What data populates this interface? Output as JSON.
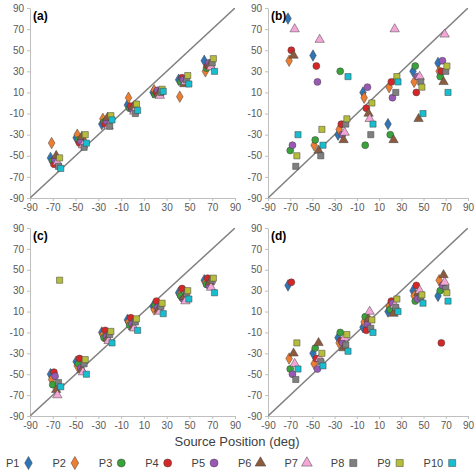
{
  "x_label": "Source Position (deg)",
  "chart_data": [
    {
      "type": "scatter",
      "title": "(a)",
      "xlim": [
        -90,
        90
      ],
      "ylim": [
        -90,
        90
      ],
      "xticks": [
        -90,
        -70,
        -50,
        -30,
        -10,
        10,
        30,
        50,
        70,
        90
      ],
      "yticks": [
        -90,
        -70,
        -50,
        -30,
        -10,
        10,
        30,
        50,
        70,
        90
      ],
      "series": [
        {
          "name": "P1",
          "color": "#2e75b6",
          "marker": "diamond",
          "x": [
            -72,
            -49.5,
            -27,
            -4.5,
            18,
            40.5,
            63
          ],
          "values": [
            -52,
            -33,
            -20,
            -2,
            10,
            22,
            40
          ]
        },
        {
          "name": "P2",
          "color": "#ed7d31",
          "marker": "diamond",
          "x": [
            -71,
            -48.5,
            -26,
            -3.5,
            19,
            41.5,
            64
          ],
          "values": [
            -38,
            -30,
            -15,
            5,
            12,
            6,
            30
          ]
        },
        {
          "name": "P3",
          "color": "#3aa23a",
          "marker": "circle",
          "x": [
            -70,
            -47.5,
            -25,
            -2.5,
            20,
            42.5,
            65
          ],
          "values": [
            -55,
            -35,
            -18,
            -5,
            8,
            20,
            33
          ]
        },
        {
          "name": "P4",
          "color": "#d62728",
          "marker": "circle",
          "x": [
            -69,
            -46.5,
            -24,
            -1.5,
            21,
            43.5,
            66
          ],
          "values": [
            -58,
            -38,
            -20,
            -3,
            10,
            24,
            35
          ]
        },
        {
          "name": "P5",
          "color": "#9b59b6",
          "marker": "circle",
          "x": [
            -68,
            -45.5,
            -23,
            -0.5,
            22,
            44.5,
            67
          ],
          "values": [
            -54,
            -36,
            -17,
            -6,
            12,
            22,
            38
          ]
        },
        {
          "name": "P6",
          "color": "#8c5a3c",
          "marker": "triangle",
          "x": [
            -67,
            -44.5,
            -22,
            0.5,
            23,
            45.5,
            68
          ],
          "values": [
            -50,
            -32,
            -14,
            -4,
            9,
            18,
            36
          ]
        },
        {
          "name": "P7",
          "color": "#f4a6d7",
          "marker": "triangle",
          "x": [
            -66,
            -43.5,
            -21,
            1.5,
            24,
            46.5,
            69
          ],
          "values": [
            -56,
            -40,
            -22,
            -8,
            7,
            20,
            34
          ]
        },
        {
          "name": "P8",
          "color": "#7f7f7f",
          "marker": "square",
          "x": [
            -65,
            -42.5,
            -20,
            2.5,
            25,
            47.5,
            70
          ],
          "values": [
            -60,
            -42,
            -22,
            -10,
            10,
            22,
            38
          ]
        },
        {
          "name": "P9",
          "color": "#b5bd3a",
          "marker": "square",
          "x": [
            -64,
            -41.5,
            -19,
            3.5,
            26,
            48.5,
            71
          ],
          "values": [
            -52,
            -30,
            -12,
            -1,
            13,
            26,
            42
          ]
        },
        {
          "name": "P10",
          "color": "#17becf",
          "marker": "square",
          "x": [
            -63,
            -40.5,
            -18,
            4.5,
            27,
            49.5,
            72
          ],
          "values": [
            -62,
            -38,
            -16,
            -7,
            11,
            18,
            30
          ]
        }
      ]
    },
    {
      "type": "scatter",
      "title": "(b)",
      "xlim": [
        -90,
        90
      ],
      "ylim": [
        -90,
        90
      ],
      "xticks": [
        -90,
        -70,
        -50,
        -30,
        -10,
        10,
        30,
        50,
        70,
        90
      ],
      "yticks": [
        -90,
        -70,
        -50,
        -30,
        -10,
        10,
        30,
        50,
        70,
        90
      ],
      "series": [
        {
          "name": "P1",
          "color": "#2e75b6",
          "marker": "diamond",
          "x": [
            -72,
            -49.5,
            -27,
            -4.5,
            18,
            40.5,
            63
          ],
          "values": [
            80,
            45,
            -30,
            10,
            -20,
            30,
            38
          ]
        },
        {
          "name": "P2",
          "color": "#ed7d31",
          "marker": "diamond",
          "x": [
            -71,
            -48.5,
            -26,
            -3.5,
            19,
            41.5,
            64
          ],
          "values": [
            40,
            -40,
            -25,
            5,
            15,
            20,
            30
          ]
        },
        {
          "name": "P3",
          "color": "#3aa23a",
          "marker": "circle",
          "x": [
            -70,
            -47.5,
            -25,
            -2.5,
            20,
            42.5,
            65
          ],
          "values": [
            -45,
            -35,
            30,
            -40,
            -30,
            35,
            25
          ]
        },
        {
          "name": "P4",
          "color": "#d62728",
          "marker": "circle",
          "x": [
            -69,
            -46.5,
            -24,
            -1.5,
            21,
            43.5,
            66
          ],
          "values": [
            50,
            35,
            -20,
            -5,
            20,
            10,
            30
          ]
        },
        {
          "name": "P5",
          "color": "#9b59b6",
          "marker": "circle",
          "x": [
            -68,
            -45.5,
            -23,
            -0.5,
            22,
            44.5,
            67
          ],
          "values": [
            -40,
            20,
            -30,
            15,
            5,
            25,
            40
          ]
        },
        {
          "name": "P6",
          "color": "#8c5a3c",
          "marker": "triangle",
          "x": [
            -67,
            -44.5,
            -22,
            0.5,
            23,
            45.5,
            68
          ],
          "values": [
            45,
            -45,
            -35,
            -10,
            -35,
            -15,
            20
          ]
        },
        {
          "name": "P7",
          "color": "#f4a6d7",
          "marker": "triangle",
          "x": [
            -66,
            -43.5,
            -21,
            1.5,
            24,
            46.5,
            69
          ],
          "values": [
            70,
            60,
            -28,
            -15,
            70,
            25,
            65
          ]
        },
        {
          "name": "P8",
          "color": "#7f7f7f",
          "marker": "square",
          "x": [
            -65,
            -42.5,
            -20,
            2.5,
            25,
            47.5,
            70
          ],
          "values": [
            -60,
            -50,
            -20,
            -30,
            10,
            20,
            30
          ]
        },
        {
          "name": "P9",
          "color": "#b5bd3a",
          "marker": "square",
          "x": [
            -64,
            -41.5,
            -19,
            3.5,
            26,
            48.5,
            71
          ],
          "values": [
            -50,
            -25,
            -15,
            0,
            25,
            15,
            35
          ]
        },
        {
          "name": "P10",
          "color": "#17becf",
          "marker": "square",
          "x": [
            -63,
            -40.5,
            -18,
            4.5,
            27,
            49.5,
            72
          ],
          "values": [
            -30,
            -40,
            25,
            -20,
            20,
            -10,
            10
          ]
        }
      ]
    },
    {
      "type": "scatter",
      "title": "(c)",
      "xlim": [
        -90,
        90
      ],
      "ylim": [
        -90,
        90
      ],
      "xticks": [
        -90,
        -70,
        -50,
        -30,
        -10,
        10,
        30,
        50,
        70,
        90
      ],
      "yticks": [
        -90,
        -70,
        -50,
        -30,
        -10,
        10,
        30,
        50,
        70,
        90
      ],
      "series": [
        {
          "name": "P1",
          "color": "#2e75b6",
          "marker": "diamond",
          "x": [
            -72,
            -49.5,
            -27,
            -4.5,
            18,
            40.5,
            63
          ],
          "values": [
            -50,
            -38,
            -10,
            2,
            15,
            28,
            40
          ]
        },
        {
          "name": "P2",
          "color": "#ed7d31",
          "marker": "diamond",
          "x": [
            -71,
            -48.5,
            -26,
            -3.5,
            19,
            41.5,
            64
          ],
          "values": [
            -55,
            -42,
            -12,
            0,
            12,
            26,
            38
          ]
        },
        {
          "name": "P3",
          "color": "#3aa23a",
          "marker": "circle",
          "x": [
            -70,
            -47.5,
            -25,
            -2.5,
            20,
            42.5,
            65
          ],
          "values": [
            -60,
            -40,
            -15,
            -3,
            16,
            25,
            36
          ]
        },
        {
          "name": "P4",
          "color": "#d62728",
          "marker": "circle",
          "x": [
            -69,
            -46.5,
            -24,
            -1.5,
            21,
            43.5,
            66
          ],
          "values": [
            -48,
            -35,
            -8,
            4,
            20,
            32,
            42
          ]
        },
        {
          "name": "P5",
          "color": "#9b59b6",
          "marker": "circle",
          "x": [
            -68,
            -45.5,
            -23,
            -0.5,
            22,
            44.5,
            67
          ],
          "values": [
            -52,
            -44,
            -14,
            -2,
            14,
            22,
            35
          ]
        },
        {
          "name": "P6",
          "color": "#8c5a3c",
          "marker": "triangle",
          "x": [
            -67,
            -44.5,
            -22,
            0.5,
            23,
            45.5,
            68
          ],
          "values": [
            -65,
            -46,
            -16,
            -5,
            12,
            24,
            38
          ]
        },
        {
          "name": "P7",
          "color": "#f4a6d7",
          "marker": "triangle",
          "x": [
            -66,
            -43.5,
            -21,
            1.5,
            24,
            46.5,
            69
          ],
          "values": [
            -70,
            -48,
            -18,
            -6,
            10,
            20,
            33
          ]
        },
        {
          "name": "P8",
          "color": "#7f7f7f",
          "marker": "square",
          "x": [
            -65,
            -42.5,
            -20,
            2.5,
            25,
            47.5,
            70
          ],
          "values": [
            -58,
            -40,
            -12,
            0,
            15,
            27,
            40
          ]
        },
        {
          "name": "P9",
          "color": "#b5bd3a",
          "marker": "square",
          "x": [
            -64,
            -41.5,
            -19,
            3.5,
            26,
            48.5,
            71
          ],
          "values": [
            40,
            -36,
            -9,
            3,
            18,
            30,
            42
          ]
        },
        {
          "name": "P10",
          "color": "#17becf",
          "marker": "square",
          "x": [
            -63,
            -40.5,
            -18,
            4.5,
            27,
            49.5,
            72
          ],
          "values": [
            -62,
            -50,
            -20,
            -8,
            8,
            22,
            28
          ]
        }
      ]
    },
    {
      "type": "scatter",
      "title": "(d)",
      "xlim": [
        -90,
        90
      ],
      "ylim": [
        -90,
        90
      ],
      "xticks": [
        -90,
        -70,
        -50,
        -30,
        -10,
        10,
        30,
        50,
        70,
        90
      ],
      "yticks": [
        -90,
        -70,
        -50,
        -30,
        -10,
        10,
        30,
        50,
        70,
        90
      ],
      "series": [
        {
          "name": "P1",
          "color": "#2e75b6",
          "marker": "diamond",
          "x": [
            -72,
            -49.5,
            -27,
            -4.5,
            18,
            40.5,
            63
          ],
          "values": [
            35,
            -30,
            -15,
            -5,
            10,
            30,
            25
          ]
        },
        {
          "name": "P2",
          "color": "#ed7d31",
          "marker": "diamond",
          "x": [
            -71,
            -48.5,
            -26,
            -3.5,
            19,
            41.5,
            64
          ],
          "values": [
            -35,
            -40,
            -20,
            0,
            15,
            25,
            40
          ]
        },
        {
          "name": "P3",
          "color": "#3aa23a",
          "marker": "circle",
          "x": [
            -70,
            -47.5,
            -25,
            -2.5,
            20,
            42.5,
            65
          ],
          "values": [
            -45,
            -25,
            -10,
            5,
            12,
            20,
            30
          ]
        },
        {
          "name": "P4",
          "color": "#d62728",
          "marker": "circle",
          "x": [
            -69,
            -46.5,
            -24,
            -1.5,
            21,
            43.5,
            66
          ],
          "values": [
            38,
            -35,
            -18,
            -8,
            20,
            35,
            -20
          ]
        },
        {
          "name": "P5",
          "color": "#9b59b6",
          "marker": "circle",
          "x": [
            -68,
            -45.5,
            -23,
            -0.5,
            22,
            44.5,
            67
          ],
          "values": [
            -50,
            -45,
            -20,
            -2,
            18,
            22,
            35
          ]
        },
        {
          "name": "P6",
          "color": "#8c5a3c",
          "marker": "triangle",
          "x": [
            -67,
            -44.5,
            -22,
            0.5,
            23,
            45.5,
            68
          ],
          "values": [
            -30,
            -20,
            -25,
            3,
            8,
            28,
            45
          ]
        },
        {
          "name": "P7",
          "color": "#f4a6d7",
          "marker": "triangle",
          "x": [
            -66,
            -43.5,
            -21,
            1.5,
            24,
            46.5,
            69
          ],
          "values": [
            -40,
            -35,
            -15,
            10,
            16,
            30,
            38
          ]
        },
        {
          "name": "P8",
          "color": "#7f7f7f",
          "marker": "square",
          "x": [
            -65,
            -42.5,
            -20,
            2.5,
            25,
            47.5,
            70
          ],
          "values": [
            -55,
            -38,
            -22,
            -6,
            14,
            24,
            32
          ]
        },
        {
          "name": "P9",
          "color": "#b5bd3a",
          "marker": "square",
          "x": [
            -64,
            -41.5,
            -19,
            3.5,
            26,
            48.5,
            71
          ],
          "values": [
            -20,
            -30,
            -12,
            2,
            22,
            26,
            28
          ]
        },
        {
          "name": "P10",
          "color": "#17becf",
          "marker": "square",
          "x": [
            -63,
            -40.5,
            -18,
            4.5,
            27,
            49.5,
            72
          ],
          "values": [
            -45,
            -42,
            -28,
            -10,
            10,
            18,
            20
          ]
        }
      ]
    }
  ]
}
